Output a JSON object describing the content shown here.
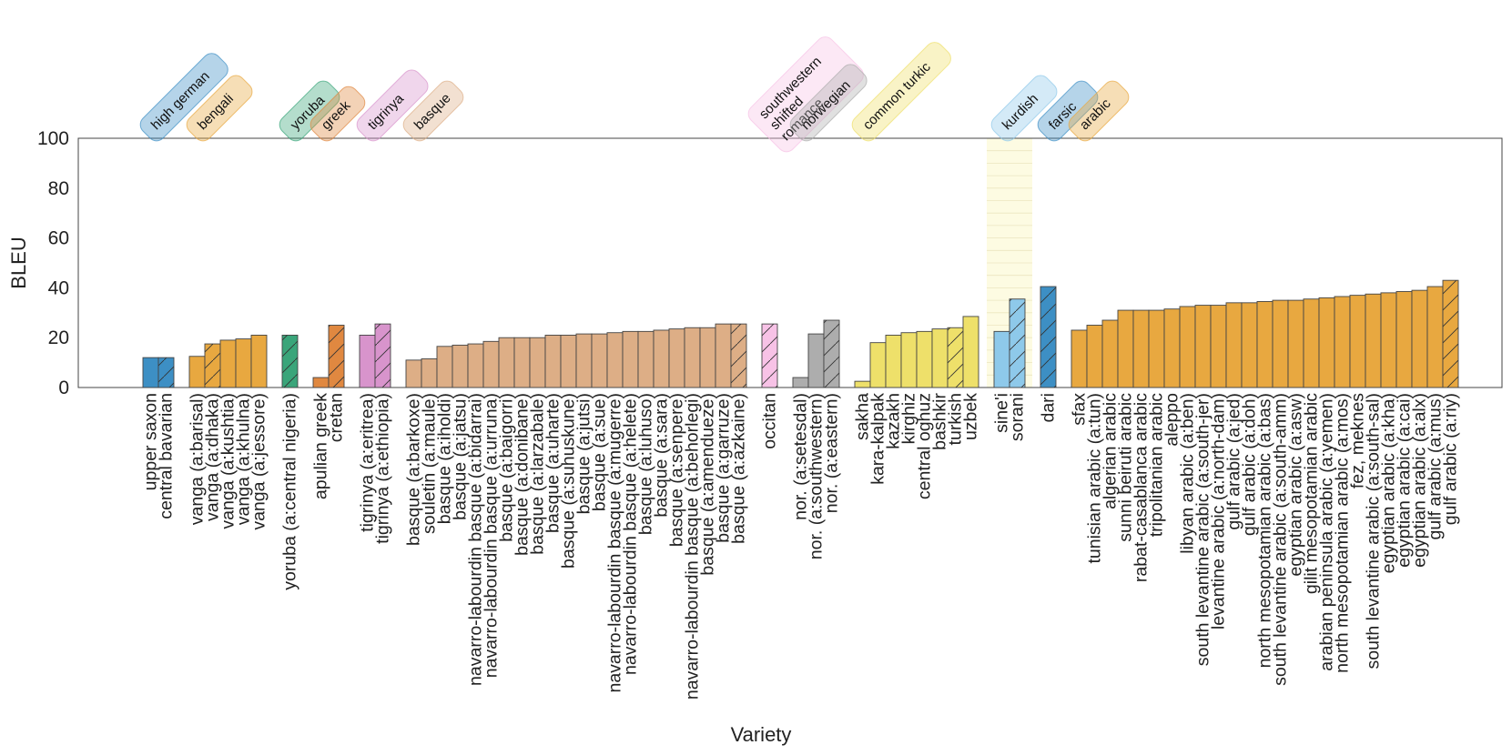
{
  "chart_data": {
    "type": "bar",
    "title": "",
    "xlabel": "Variety",
    "ylabel": "BLEU",
    "ylim": [
      0,
      100
    ],
    "yticks": [
      "0",
      "20",
      "40",
      "60",
      "80",
      "100"
    ],
    "grid": false,
    "groups": [
      {
        "name": "high german",
        "color": "#3d8fc4",
        "bars": [
          {
            "label": "upper saxon",
            "value": 12,
            "hatch": false
          },
          {
            "label": "central bavarian",
            "value": 12,
            "hatch": true
          }
        ]
      },
      {
        "name": "bengali",
        "color": "#e8a840",
        "bars": [
          {
            "label": "vanga (a:barisal)",
            "value": 12.5,
            "hatch": false
          },
          {
            "label": "vanga (a:dhaka)",
            "value": 17.5,
            "hatch": true
          },
          {
            "label": "vanga (a:kushtia)",
            "value": 19,
            "hatch": false
          },
          {
            "label": "vanga (a:khulna)",
            "value": 19.5,
            "hatch": false
          },
          {
            "label": "vanga (a:jessore)",
            "value": 21,
            "hatch": false
          }
        ]
      },
      {
        "name": "yoruba",
        "color": "#3aa57a",
        "bars": [
          {
            "label": "yoruba (a:central nigeria)",
            "value": 21,
            "hatch": true
          }
        ]
      },
      {
        "name": "greek",
        "color": "#e08840",
        "bars": [
          {
            "label": "apulian greek",
            "value": 4,
            "hatch": false
          },
          {
            "label": "cretan",
            "value": 25,
            "hatch": true
          }
        ]
      },
      {
        "name": "tigrinya",
        "color": "#d894cc",
        "bars": [
          {
            "label": "tigrinya (a:eritrea)",
            "value": 21,
            "hatch": false
          },
          {
            "label": "tigrinya (a:ethiopia)",
            "value": 25.5,
            "hatch": true
          }
        ]
      },
      {
        "name": "basque",
        "color": "#ddae86",
        "bars": [
          {
            "label": "basque (a:barkoxe)",
            "value": 11,
            "hatch": false
          },
          {
            "label": "souletin (a:maule)",
            "value": 11.5,
            "hatch": false
          },
          {
            "label": "basque (a:iholdi)",
            "value": 16.5,
            "hatch": false
          },
          {
            "label": "basque (a:jatsu)",
            "value": 17,
            "hatch": false
          },
          {
            "label": "navarro-labourdin basque (a:bidarrai)",
            "value": 17.5,
            "hatch": false
          },
          {
            "label": "navarro-labourdin basque (a:urruna)",
            "value": 18.5,
            "hatch": false
          },
          {
            "label": "basque (a:baigorri)",
            "value": 20,
            "hatch": false
          },
          {
            "label": "basque (a:donibane)",
            "value": 20,
            "hatch": false
          },
          {
            "label": "basque (a:larzabale)",
            "value": 20,
            "hatch": false
          },
          {
            "label": "basque (a:uharte)",
            "value": 21,
            "hatch": false
          },
          {
            "label": "basque (a:suhuskune)",
            "value": 21,
            "hatch": false
          },
          {
            "label": "basque (a:jutsi)",
            "value": 21.5,
            "hatch": false
          },
          {
            "label": "basque (a:sue)",
            "value": 21.5,
            "hatch": false
          },
          {
            "label": "navarro-labourdin basque (a:mugerre)",
            "value": 22,
            "hatch": false
          },
          {
            "label": "navarro-labourdin basque (a:helete)",
            "value": 22.5,
            "hatch": false
          },
          {
            "label": "basque (a:luhuso)",
            "value": 22.5,
            "hatch": false
          },
          {
            "label": "basque (a:sara)",
            "value": 23,
            "hatch": false
          },
          {
            "label": "basque (a:senpere)",
            "value": 23.5,
            "hatch": false
          },
          {
            "label": "navarro-labourdin basque (a:behorlegi)",
            "value": 24,
            "hatch": false
          },
          {
            "label": "basque (a:amendueze)",
            "value": 24,
            "hatch": false
          },
          {
            "label": "basque (a:garruze)",
            "value": 25.5,
            "hatch": false
          },
          {
            "label": "basque (a:azkaine)",
            "value": 25.5,
            "hatch": true
          }
        ]
      },
      {
        "name": "southwestern shifted romance",
        "color": "#f7c2e6",
        "bars": [
          {
            "label": "occitan",
            "value": 25.5,
            "hatch": true
          }
        ]
      },
      {
        "name": "norwegian",
        "color": "#adadad",
        "bars": [
          {
            "label": "nor. (a:setesdal)",
            "value": 4,
            "hatch": false
          },
          {
            "label": "nor. (a:southwestern)",
            "value": 21.5,
            "hatch": false
          },
          {
            "label": "nor. (a:eastern)",
            "value": 27,
            "hatch": true
          }
        ]
      },
      {
        "name": "common turkic",
        "color": "#eee06a",
        "bars": [
          {
            "label": "sakha",
            "value": 2.5,
            "hatch": false
          },
          {
            "label": "kara-kalpak",
            "value": 18,
            "hatch": false
          },
          {
            "label": "kazakh",
            "value": 21,
            "hatch": false
          },
          {
            "label": "kirghiz",
            "value": 22,
            "hatch": false
          },
          {
            "label": "central oghuz",
            "value": 22.5,
            "hatch": false
          },
          {
            "label": "bashkir",
            "value": 23.5,
            "hatch": false
          },
          {
            "label": "turkish",
            "value": 24,
            "hatch": true
          },
          {
            "label": "uzbek",
            "value": 28.5,
            "hatch": false
          }
        ]
      },
      {
        "name": "kurdish",
        "color": "#8ec9ea",
        "bars": [
          {
            "label": "sine'i",
            "value": 22.5,
            "hatch": false
          },
          {
            "label": "sorani",
            "value": 35.5,
            "hatch": true
          }
        ]
      },
      {
        "name": "farsic",
        "color": "#3d8fc4",
        "bars": [
          {
            "label": "dari",
            "value": 40.5,
            "hatch": true
          }
        ]
      },
      {
        "name": "arabic",
        "color": "#e8a840",
        "bars": [
          {
            "label": "sfax",
            "value": 23,
            "hatch": false
          },
          {
            "label": "tunisian arabic (a:tun)",
            "value": 25,
            "hatch": false
          },
          {
            "label": "algerian arabic",
            "value": 27,
            "hatch": false
          },
          {
            "label": "sunni beiruti arabic",
            "value": 31,
            "hatch": false
          },
          {
            "label": "rabat-casablanca arabic",
            "value": 31,
            "hatch": false
          },
          {
            "label": "tripolitanian arabic",
            "value": 31,
            "hatch": false
          },
          {
            "label": "aleppo",
            "value": 31.5,
            "hatch": false
          },
          {
            "label": "libyan arabic (a:ben)",
            "value": 32.5,
            "hatch": false
          },
          {
            "label": "south levantine arabic (a:south-jer)",
            "value": 33,
            "hatch": false
          },
          {
            "label": "levantine arabic (a:north-dam)",
            "value": 33,
            "hatch": false
          },
          {
            "label": "gulf arabic (a:jed)",
            "value": 34,
            "hatch": false
          },
          {
            "label": "gulf arabic (a:doh)",
            "value": 34,
            "hatch": false
          },
          {
            "label": "north mesopotamian arabic (a:bas)",
            "value": 34.5,
            "hatch": false
          },
          {
            "label": "south levantine arabic (a:south-amm)",
            "value": 35,
            "hatch": false
          },
          {
            "label": "egyptian arabic (a:asw)",
            "value": 35,
            "hatch": false
          },
          {
            "label": "gilit mesopotamian arabic",
            "value": 35.5,
            "hatch": false
          },
          {
            "label": "arabian peninsula arabic (a:yemen)",
            "value": 36,
            "hatch": false
          },
          {
            "label": "north mesopotamian arabic (a:mos)",
            "value": 36.5,
            "hatch": false
          },
          {
            "label": "fez, meknes",
            "value": 37,
            "hatch": false
          },
          {
            "label": "south levantine arabic (a:south-sal)",
            "value": 37.5,
            "hatch": false
          },
          {
            "label": "egyptian arabic (a:kha)",
            "value": 38,
            "hatch": false
          },
          {
            "label": "egyptian arabic (a:cai)",
            "value": 38.5,
            "hatch": false
          },
          {
            "label": "egyptian arabic (a:alx)",
            "value": 39,
            "hatch": false
          },
          {
            "label": "gulf arabic (a:mus)",
            "value": 40.5,
            "hatch": false
          },
          {
            "label": "gulf arabic (a:riy)",
            "value": 43,
            "hatch": true
          }
        ]
      }
    ],
    "highlight_group": "kurdish",
    "highlight_color": "#fdfbe2"
  },
  "group_label_lines": {
    "southwestern shifted romance": [
      "southwestern",
      "shifted",
      "romance"
    ]
  }
}
